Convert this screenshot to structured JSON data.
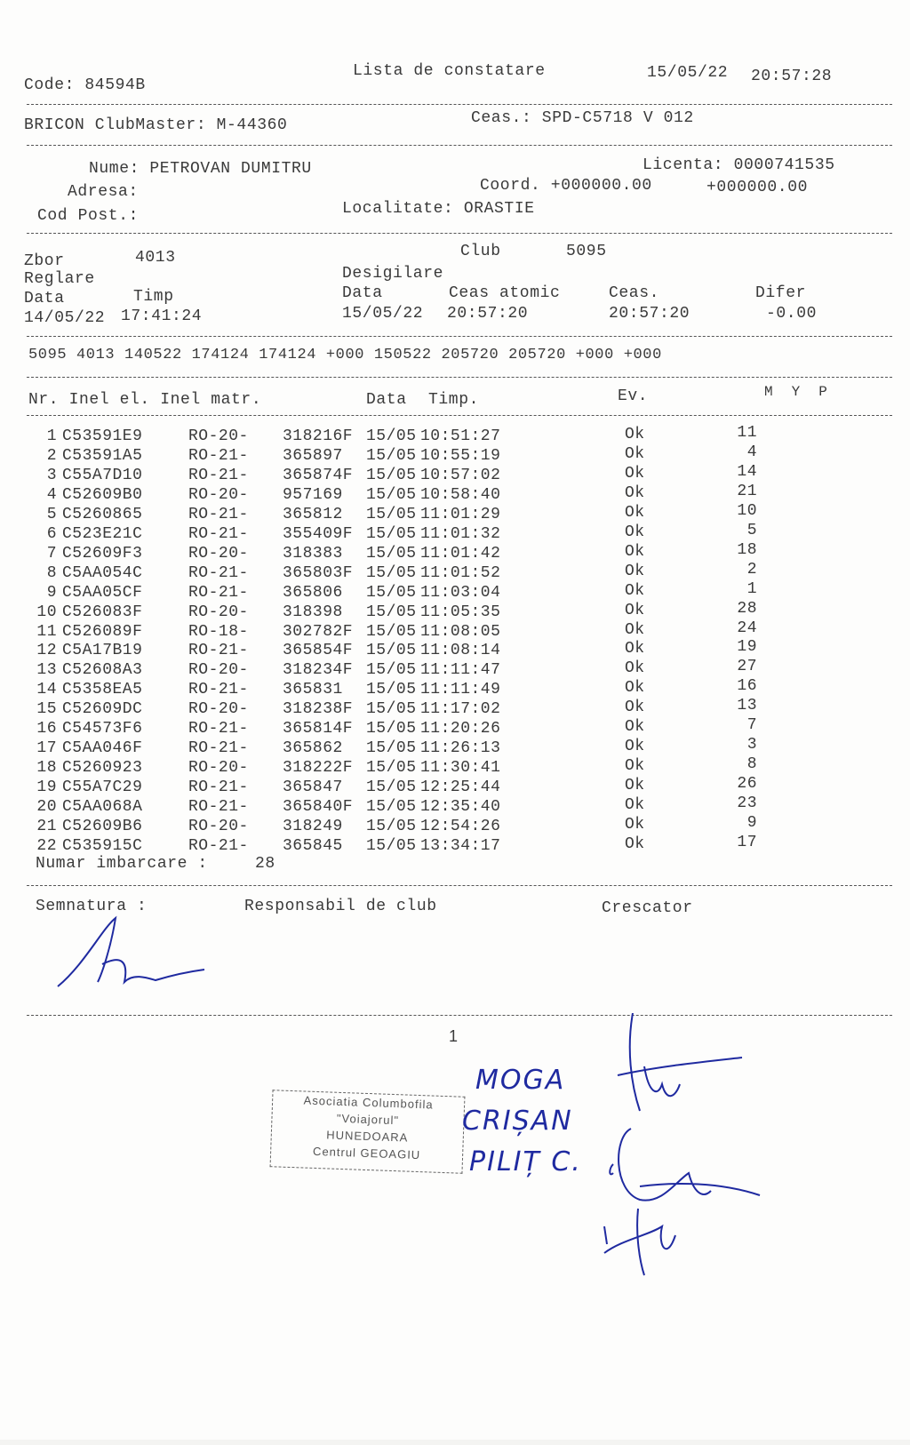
{
  "header": {
    "code": "Code: 84594B",
    "title": "Lista de constatare",
    "date": "15/05/22",
    "time": "20:57:28"
  },
  "device": {
    "clubmaster": "BRICON ClubMaster: M-44360",
    "ceas": "Ceas.: SPD-C5718 V 012"
  },
  "owner": {
    "nume": "Nume: PETROVAN DUMITRU",
    "licenta": "Licenta: 0000741535",
    "adresa": "Adresa:",
    "coord": "Coord. +000000.00",
    "coord2": "+000000.00",
    "cod_post": "Cod Post.:",
    "localitate": "Localitate: ORASTIE"
  },
  "flight": {
    "zbor_label": "Zbor",
    "zbor": "4013",
    "club_label": "Club",
    "club": "5095",
    "reglare": "Reglare",
    "desigilare": "Desigilare",
    "data_label": "Data",
    "timp_label": "Timp",
    "data2_label": "Data",
    "ceas_atomic_label": "Ceas atomic",
    "ceas_label": "Ceas.",
    "difer_label": "Difer",
    "reg_data": "14/05/22",
    "reg_timp": "17:41:24",
    "des_data": "15/05/22",
    "des_atomic": "20:57:20",
    "des_ceas": "20:57:20",
    "difer": "-0.00"
  },
  "summary_line": "5095 4013 140522 174124 174124 +000 150522 205720 205720 +000 +000",
  "table": {
    "headers": {
      "nr": "Nr. Inel el. Inel matr.",
      "data": "Data",
      "timp": "Timp.",
      "ev": "Ev.",
      "myp": "M  Y  P"
    },
    "rows": [
      [
        "1",
        "C53591E9",
        "RO-20-",
        "318216F",
        "15/05",
        "10:51:27",
        "Ok",
        "11"
      ],
      [
        "2",
        "C53591A5",
        "RO-21-",
        "365897",
        "15/05",
        "10:55:19",
        "Ok",
        "4"
      ],
      [
        "3",
        "C55A7D10",
        "RO-21-",
        "365874F",
        "15/05",
        "10:57:02",
        "Ok",
        "14"
      ],
      [
        "4",
        "C52609B0",
        "RO-20-",
        "957169",
        "15/05",
        "10:58:40",
        "Ok",
        "21"
      ],
      [
        "5",
        "C5260865",
        "RO-21-",
        "365812",
        "15/05",
        "11:01:29",
        "Ok",
        "10"
      ],
      [
        "6",
        "C523E21C",
        "RO-21-",
        "355409F",
        "15/05",
        "11:01:32",
        "Ok",
        "5"
      ],
      [
        "7",
        "C52609F3",
        "RO-20-",
        "318383",
        "15/05",
        "11:01:42",
        "Ok",
        "18"
      ],
      [
        "8",
        "C5AA054C",
        "RO-21-",
        "365803F",
        "15/05",
        "11:01:52",
        "Ok",
        "2"
      ],
      [
        "9",
        "C5AA05CF",
        "RO-21-",
        "365806",
        "15/05",
        "11:03:04",
        "Ok",
        "1"
      ],
      [
        "10",
        "C526083F",
        "RO-20-",
        "318398",
        "15/05",
        "11:05:35",
        "Ok",
        "28"
      ],
      [
        "11",
        "C526089F",
        "RO-18-",
        "302782F",
        "15/05",
        "11:08:05",
        "Ok",
        "24"
      ],
      [
        "12",
        "C5A17B19",
        "RO-21-",
        "365854F",
        "15/05",
        "11:08:14",
        "Ok",
        "19"
      ],
      [
        "13",
        "C52608A3",
        "RO-20-",
        "318234F",
        "15/05",
        "11:11:47",
        "Ok",
        "27"
      ],
      [
        "14",
        "C5358EA5",
        "RO-21-",
        "365831",
        "15/05",
        "11:11:49",
        "Ok",
        "16"
      ],
      [
        "15",
        "C52609DC",
        "RO-20-",
        "318238F",
        "15/05",
        "11:17:02",
        "Ok",
        "13"
      ],
      [
        "16",
        "C54573F6",
        "RO-21-",
        "365814F",
        "15/05",
        "11:20:26",
        "Ok",
        "7"
      ],
      [
        "17",
        "C5AA046F",
        "RO-21-",
        "365862",
        "15/05",
        "11:26:13",
        "Ok",
        "3"
      ],
      [
        "18",
        "C5260923",
        "RO-20-",
        "318222F",
        "15/05",
        "11:30:41",
        "Ok",
        "8"
      ],
      [
        "19",
        "C55A7C29",
        "RO-21-",
        "365847",
        "15/05",
        "12:25:44",
        "Ok",
        "26"
      ],
      [
        "20",
        "C5AA068A",
        "RO-21-",
        "365840F",
        "15/05",
        "12:35:40",
        "Ok",
        "23"
      ],
      [
        "21",
        "C52609B6",
        "RO-20-",
        "318249",
        "15/05",
        "12:54:26",
        "Ok",
        "9"
      ],
      [
        "22",
        "C535915C",
        "RO-21-",
        "365845",
        "15/05",
        "13:34:17",
        "Ok",
        "17"
      ]
    ]
  },
  "numar_imbarcare": {
    "label": "Numar imbarcare :",
    "value": "28"
  },
  "signatures": {
    "semnatura": "Semnatura :",
    "responsabil": "Responsabil de club",
    "crescator": "Crescator"
  },
  "page_number": "1",
  "stamp": {
    "line1": "Asociatia Columbofila",
    "line2": "\"Voiajorul\"",
    "line3": "HUNEDOARA",
    "line4": "Centrul GEOAGIU"
  },
  "handwritten": {
    "name1": "MOGA",
    "name2": "CRIȘAN",
    "name3": "PILIȚ C."
  },
  "colors": {
    "ink": "#1f2aa0",
    "print": "#3a3a3a"
  }
}
